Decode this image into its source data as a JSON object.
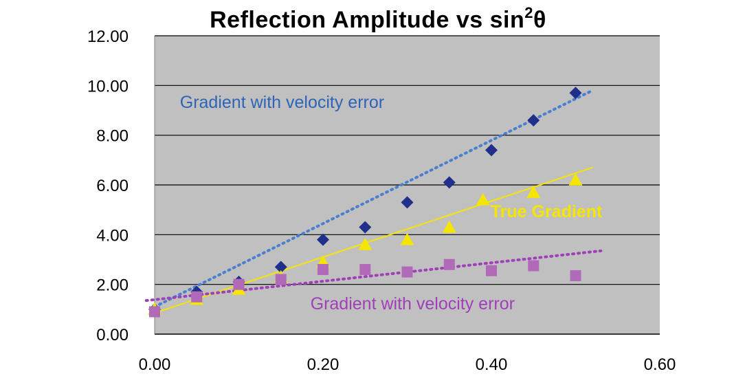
{
  "chart_data": {
    "type": "scatter",
    "title": "Reflection Amplitude vs  sin",
    "title_superscript": "2",
    "title_suffix": "θ",
    "xlabel": "",
    "ylabel": "",
    "xlim": [
      0.0,
      0.6
    ],
    "ylim": [
      0.0,
      12.0
    ],
    "x_ticks": [
      "0.00",
      "0.20",
      "0.40",
      "0.60"
    ],
    "x_tick_values": [
      0.0,
      0.2,
      0.4,
      0.6
    ],
    "y_ticks": [
      "0.00",
      "2.00",
      "4.00",
      "6.00",
      "8.00",
      "10.00",
      "12.00"
    ],
    "y_tick_values": [
      0,
      2,
      4,
      6,
      8,
      10,
      12
    ],
    "grid": "horizontal",
    "plot_background": "#c0c0c0",
    "series": [
      {
        "label": "Gradient with velocity error",
        "marker": "diamond",
        "color": "#1f2f8a",
        "trend_color": "#4a7fd0",
        "trend_style": "dotted",
        "trend": {
          "x0": 0.0,
          "y0": 1.1,
          "x1": 0.52,
          "y1": 9.8
        },
        "x": [
          0.0,
          0.05,
          0.1,
          0.15,
          0.2,
          0.25,
          0.3,
          0.35,
          0.4,
          0.45,
          0.5
        ],
        "y": [
          1.0,
          1.7,
          2.1,
          2.7,
          3.8,
          4.3,
          5.3,
          6.1,
          7.4,
          8.6,
          9.7
        ]
      },
      {
        "label": "True Gradient",
        "marker": "triangle",
        "color": "#f5e500",
        "trend_color": "#f5e500",
        "trend_style": "solid",
        "trend": {
          "x0": 0.0,
          "y0": 0.85,
          "x1": 0.52,
          "y1": 6.7
        },
        "x": [
          0.0,
          0.05,
          0.1,
          0.15,
          0.2,
          0.25,
          0.3,
          0.35,
          0.39,
          0.45,
          0.5
        ],
        "y": [
          1.0,
          1.4,
          1.8,
          2.3,
          2.9,
          3.6,
          3.8,
          4.3,
          5.4,
          5.7,
          6.2
        ]
      },
      {
        "label": "Gradient with velocity error",
        "marker": "square",
        "color": "#b06ab8",
        "trend_color": "#a040b8",
        "trend_style": "dotted",
        "trend": {
          "x0": -0.01,
          "y0": 1.35,
          "x1": 0.53,
          "y1": 3.35
        },
        "x": [
          0.0,
          0.05,
          0.1,
          0.15,
          0.2,
          0.25,
          0.3,
          0.35,
          0.4,
          0.45,
          0.5
        ],
        "y": [
          0.9,
          1.5,
          2.0,
          2.2,
          2.6,
          2.6,
          2.5,
          2.8,
          2.55,
          2.75,
          2.35
        ]
      }
    ],
    "annotations": [
      {
        "text": "Gradient with velocity error",
        "x": 0.03,
        "y": 9.1,
        "color": "#2e64b8",
        "bold": false
      },
      {
        "text": "True Gradient",
        "x": 0.399,
        "y": 4.7,
        "color": "#f5e500",
        "bold": true
      },
      {
        "text": "Gradient with velocity error",
        "x": 0.185,
        "y": 1.0,
        "color": "#a040b8",
        "bold": false
      }
    ]
  }
}
